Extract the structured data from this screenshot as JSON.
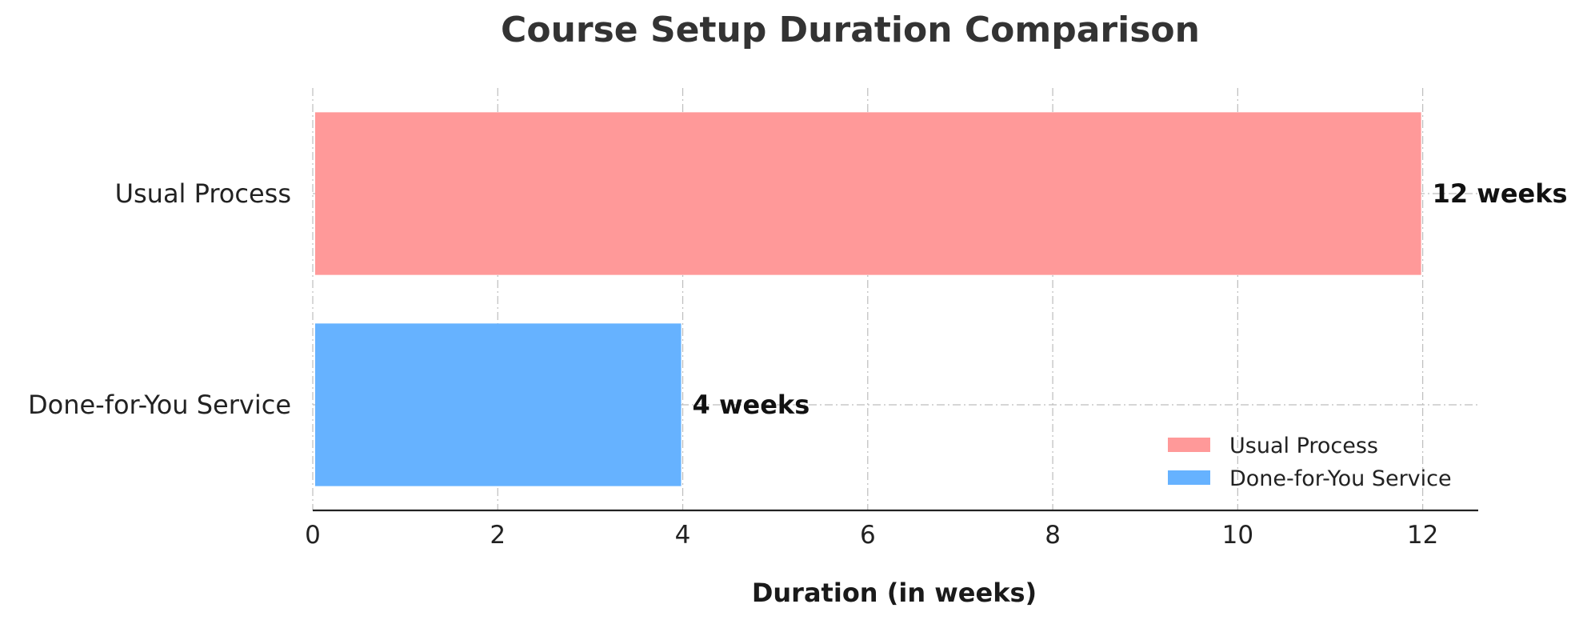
{
  "chart_data": {
    "type": "bar",
    "orientation": "horizontal",
    "title": "Course Setup Duration Comparison",
    "xlabel": "Duration (in weeks)",
    "ylabel": "",
    "categories": [
      "Usual Process",
      "Done-for-You Service"
    ],
    "values": [
      12,
      4
    ],
    "value_labels": [
      "12 weeks",
      "4 weeks"
    ],
    "colors": [
      "#ff9999",
      "#66b2ff"
    ],
    "xlim": [
      0,
      12.6
    ],
    "xticks": [
      0,
      2,
      4,
      6,
      8,
      10,
      12
    ],
    "grid": true,
    "legend": {
      "placement": "bottom-right",
      "entries": [
        "Usual Process",
        "Done-for-You Service"
      ]
    }
  }
}
